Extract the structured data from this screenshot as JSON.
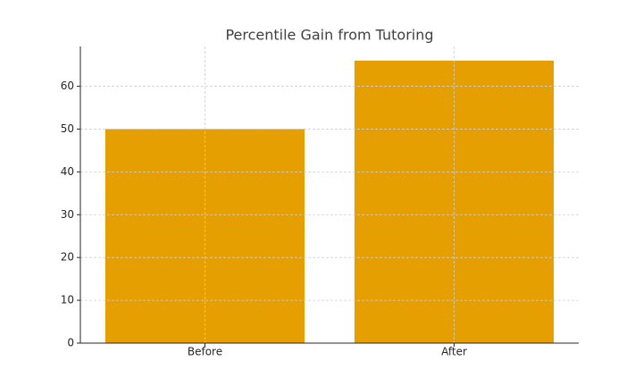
{
  "chart_data": {
    "type": "bar",
    "title": "Percentile Gain from Tutoring",
    "categories": [
      "Before",
      "After"
    ],
    "values": [
      50,
      66
    ],
    "color": "#e69f00",
    "ylim": [
      0,
      69.3
    ],
    "yticks": [
      0,
      10,
      20,
      30,
      40,
      50,
      60
    ],
    "grid": true
  }
}
